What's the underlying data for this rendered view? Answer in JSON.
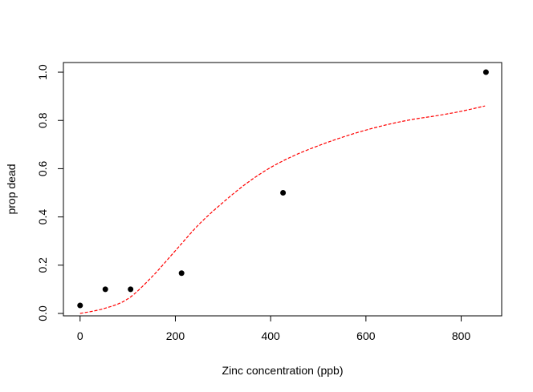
{
  "chart_data": {
    "type": "scatter",
    "xlabel": "Zinc concentration (ppb)",
    "ylabel": "prop dead",
    "xlim": [
      -35,
      885
    ],
    "ylim": [
      -0.01,
      1.04
    ],
    "x_ticks": [
      0,
      200,
      400,
      600,
      800
    ],
    "x_tick_labels": [
      "0",
      "200",
      "400",
      "600",
      "800"
    ],
    "y_ticks": [
      0.0,
      0.2,
      0.4,
      0.6,
      0.8,
      1.0
    ],
    "y_tick_labels": [
      "0.0",
      "0.2",
      "0.4",
      "0.6",
      "0.8",
      "1.0"
    ],
    "grid": false,
    "points": {
      "x": [
        0,
        53,
        106,
        213,
        426,
        852
      ],
      "y": [
        0.033,
        0.1,
        0.1,
        0.167,
        0.5,
        1.0
      ],
      "color": "#000000"
    },
    "fit_curve": {
      "x": [
        0,
        50,
        100,
        150,
        200,
        250,
        300,
        350,
        400,
        450,
        500,
        550,
        600,
        650,
        700,
        750,
        800,
        850
      ],
      "y": [
        0.0,
        0.02,
        0.06,
        0.15,
        0.26,
        0.37,
        0.46,
        0.54,
        0.605,
        0.655,
        0.695,
        0.73,
        0.76,
        0.785,
        0.805,
        0.82,
        0.838,
        0.86
      ],
      "color": "#ff0000",
      "style": "dashed"
    }
  }
}
